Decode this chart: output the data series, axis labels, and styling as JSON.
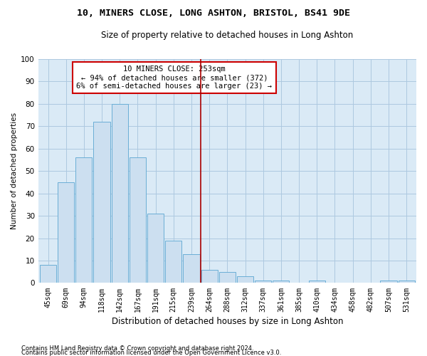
{
  "title1": "10, MINERS CLOSE, LONG ASHTON, BRISTOL, BS41 9DE",
  "title2": "Size of property relative to detached houses in Long Ashton",
  "xlabel": "Distribution of detached houses by size in Long Ashton",
  "ylabel": "Number of detached properties",
  "footnote1": "Contains HM Land Registry data © Crown copyright and database right 2024.",
  "footnote2": "Contains public sector information licensed under the Open Government Licence v3.0.",
  "categories": [
    "45sqm",
    "69sqm",
    "94sqm",
    "118sqm",
    "142sqm",
    "167sqm",
    "191sqm",
    "215sqm",
    "239sqm",
    "264sqm",
    "288sqm",
    "312sqm",
    "337sqm",
    "361sqm",
    "385sqm",
    "410sqm",
    "434sqm",
    "458sqm",
    "482sqm",
    "507sqm",
    "531sqm"
  ],
  "values": [
    8,
    45,
    56,
    72,
    80,
    56,
    31,
    19,
    13,
    6,
    5,
    3,
    1,
    1,
    0,
    1,
    0,
    0,
    0,
    1,
    1
  ],
  "bar_color": "#ccdff0",
  "bar_edge_color": "#6aaed6",
  "grid_color": "#adc8e0",
  "background_color": "#daeaf6",
  "vline_x": 8.5,
  "vline_color": "#aa0000",
  "annotation_text": "10 MINERS CLOSE: 253sqm\n← 94% of detached houses are smaller (372)\n6% of semi-detached houses are larger (23) →",
  "annotation_box_color": "#cc0000",
  "ylim": [
    0,
    100
  ],
  "yticks": [
    0,
    10,
    20,
    30,
    40,
    50,
    60,
    70,
    80,
    90,
    100
  ],
  "title1_fontsize": 9.5,
  "title2_fontsize": 8.5,
  "xlabel_fontsize": 8.5,
  "ylabel_fontsize": 7.5,
  "xtick_fontsize": 7,
  "ytick_fontsize": 7.5,
  "ann_fontsize": 7.5,
  "footnote_fontsize": 6
}
